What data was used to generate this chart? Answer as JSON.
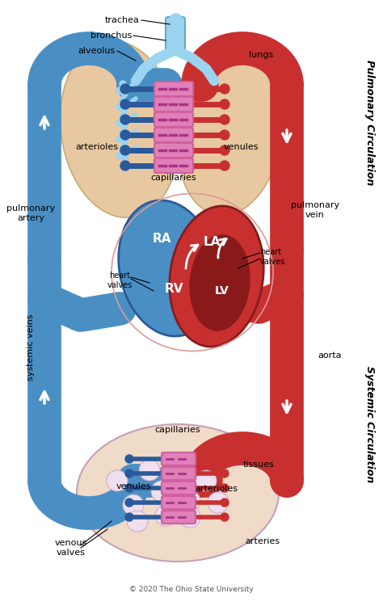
{
  "copyright": "© 2020 The Ohio State University",
  "blue_color": "#4a8fc4",
  "blue_light": "#6db3e8",
  "blue_dark": "#2a5a9a",
  "red_color": "#c83030",
  "red_dark": "#8a1a1a",
  "pink_cap": "#d060a0",
  "pink_fill": "#e080b8",
  "lung_color": "#e8c8a0",
  "lung_edge": "#c8a878",
  "tissue_color": "#f0dac8",
  "tissue_edge": "#c8a0b8",
  "bg_color": "#ffffff",
  "pulmonary_label": "Pulmonary Circulation",
  "systemic_label": "Systemic Circulation",
  "lw_vessel": 30,
  "lw_small": 5
}
